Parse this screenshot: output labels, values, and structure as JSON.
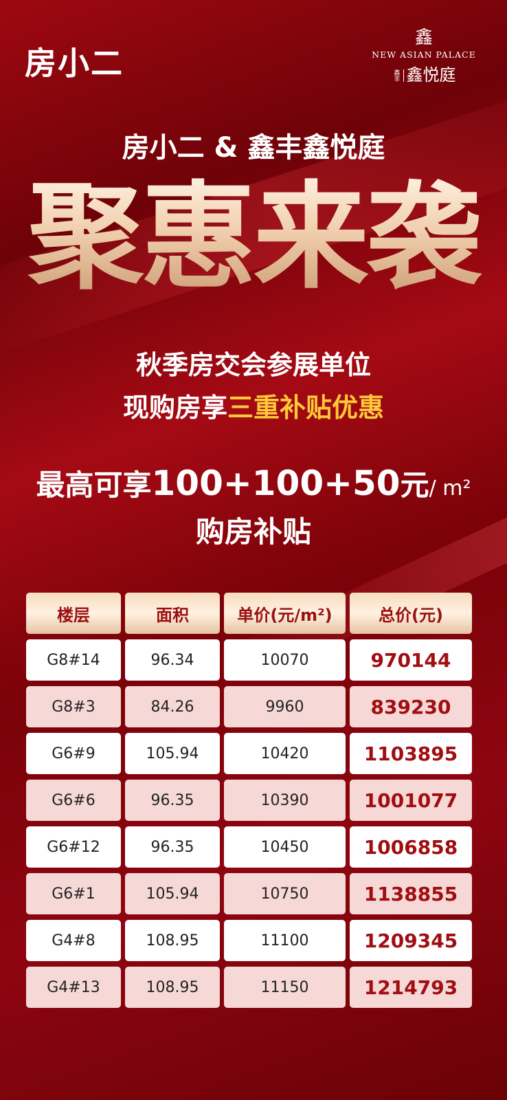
{
  "header": {
    "logo_left": "房小二",
    "brand_mark": "鑫",
    "brand_en": "NEW ASIAN PALACE",
    "brand_small": "鑫丰",
    "brand_cn": "鑫悦庭"
  },
  "headline": {
    "partners": "房小二 & 鑫丰鑫悦庭",
    "title": "聚惠来袭"
  },
  "subtitle": {
    "line1": "秋季房交会参展单位",
    "line2_prefix": "现购房享",
    "line2_highlight": "三重补贴优惠"
  },
  "offer": {
    "prefix": "最高可享",
    "amount": "100+100+50",
    "unit_cn": "元",
    "unit": "/ m²",
    "line2": "购房补贴"
  },
  "colors": {
    "background": "#8e0510",
    "highlight": "#ffc93a",
    "total_text": "#a00e12"
  },
  "table": {
    "headers": [
      "楼层",
      "面积",
      "单价(元/m²)",
      "总价(元)"
    ],
    "rows": [
      [
        "G8#14",
        "96.34",
        "10070",
        "970144"
      ],
      [
        "G8#3",
        "84.26",
        "9960",
        "839230"
      ],
      [
        "G6#9",
        "105.94",
        "10420",
        "1103895"
      ],
      [
        "G6#6",
        "96.35",
        "10390",
        "1001077"
      ],
      [
        "G6#12",
        "96.35",
        "10450",
        "1006858"
      ],
      [
        "G6#1",
        "105.94",
        "10750",
        "1138855"
      ],
      [
        "G4#8",
        "108.95",
        "11100",
        "1209345"
      ],
      [
        "G4#13",
        "108.95",
        "11150",
        "1214793"
      ]
    ]
  }
}
